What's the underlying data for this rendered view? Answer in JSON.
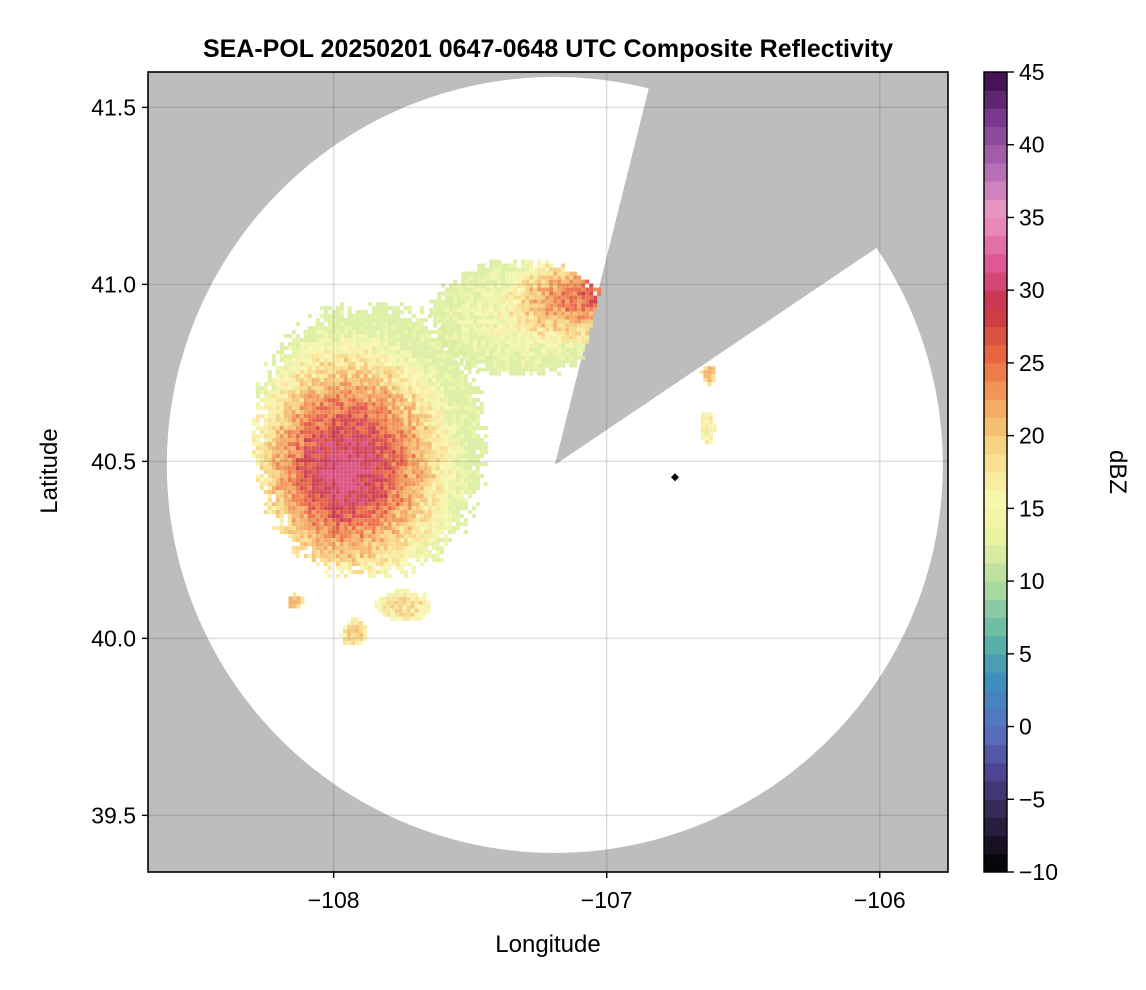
{
  "chart_data": {
    "type": "heatmap",
    "title": "SEA-POL 20250201 0647-0648 UTC Composite Reflectivity",
    "xlabel": "Longitude",
    "ylabel": "Latitude",
    "xlim": [
      -108.68,
      -105.75
    ],
    "ylim": [
      39.34,
      41.6
    ],
    "xticks": [
      -108,
      -107,
      -106
    ],
    "yticks": [
      39.5,
      40.0,
      40.5,
      41.0,
      41.5
    ],
    "xtick_labels": [
      "−108",
      "−107",
      "−106"
    ],
    "ytick_labels": [
      "39.5",
      "40.0",
      "40.5",
      "41.0",
      "41.5"
    ],
    "grid": true,
    "background_color": "#bdbdbd",
    "radar": {
      "site_lon": -107.19,
      "site_lat": 40.49,
      "coverage": "circle of about 1.43 deg longitude by 1.09 deg latitude radius, with a blocked wedge to the north-east",
      "blocked_sector_bearings_deg": [
        14,
        56
      ],
      "marker": {
        "lon": -106.75,
        "lat": 40.455,
        "shape": "diamond"
      }
    },
    "colorbar": {
      "label": "dBZ",
      "min": -10,
      "max": 45,
      "ticks": [
        -10,
        -5,
        0,
        5,
        10,
        15,
        20,
        25,
        30,
        35,
        40,
        45
      ],
      "tick_labels": [
        "−10",
        "−5",
        "0",
        "5",
        "10",
        "15",
        "20",
        "25",
        "30",
        "35",
        "40",
        "45"
      ],
      "colormap": "spectral-reversed",
      "colors": [
        "#000000",
        "#2a1e3e",
        "#4b3f8a",
        "#5a6fbf",
        "#3d8dbf",
        "#5fb6a3",
        "#a8d8a0",
        "#e6f2a0",
        "#fbf6b0",
        "#f6d784",
        "#f2a45c",
        "#e86640",
        "#c83045",
        "#e05a9a",
        "#ea9ac6",
        "#b06ab4",
        "#7a3a8e",
        "#3a0a48"
      ]
    },
    "echo_regions": [
      {
        "name": "main-band",
        "lon": [
          -108.3,
          -107.45
        ],
        "lat": [
          40.18,
          40.95
        ],
        "dbz_range": [
          12,
          31
        ],
        "peak_lon": -107.98,
        "peak_lat": 40.47,
        "peak_dbz": 31
      },
      {
        "name": "north-band",
        "lon": [
          -107.65,
          -107.0
        ],
        "lat": [
          40.75,
          41.07
        ],
        "dbz_range": [
          12,
          29
        ],
        "peak_lon": -107.05,
        "peak_lat": 40.98,
        "peak_dbz": 29
      },
      {
        "name": "cell-108.15-40.12",
        "lon": [
          -108.18,
          -108.12
        ],
        "lat": [
          40.09,
          40.13
        ],
        "dbz_range": [
          18,
          22
        ]
      },
      {
        "name": "cell-107.93-40.02",
        "lon": [
          -107.98,
          -107.88
        ],
        "lat": [
          39.98,
          40.06
        ],
        "dbz_range": [
          16,
          21
        ]
      },
      {
        "name": "cell-107.78-40.09",
        "lon": [
          -107.85,
          -107.65
        ],
        "lat": [
          40.05,
          40.14
        ],
        "dbz_range": [
          14,
          20
        ]
      },
      {
        "name": "cell-106.63-40.6",
        "lon": [
          -106.67,
          -106.61
        ],
        "lat": [
          40.55,
          40.65
        ],
        "dbz_range": [
          14,
          18
        ]
      },
      {
        "name": "cell-106.64-40.75",
        "lon": [
          -106.66,
          -106.61
        ],
        "lat": [
          40.72,
          40.78
        ],
        "dbz_range": [
          18,
          22
        ]
      }
    ]
  }
}
